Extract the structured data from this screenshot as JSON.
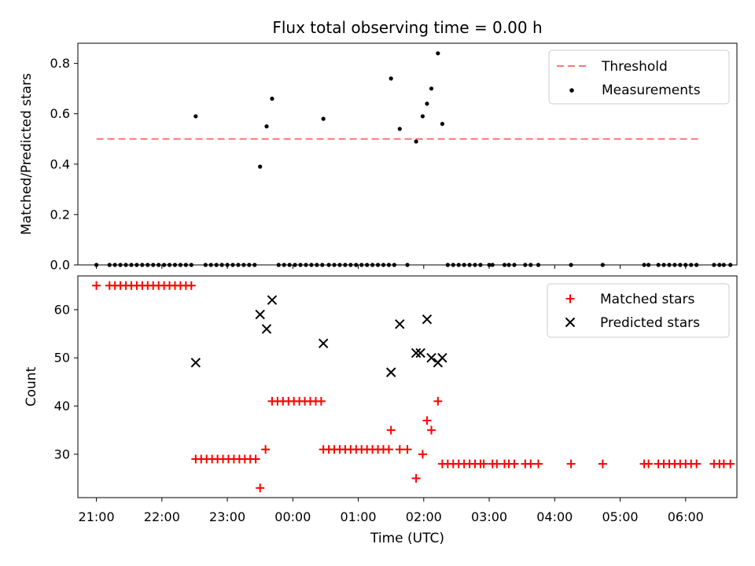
{
  "chart_data": [
    {
      "type": "scatter",
      "title": "Flux total observing time = 0.00 h",
      "xlabel": "",
      "ylabel": "Matched/Predicted stars",
      "xlim": [
        "20:43",
        "06:47"
      ],
      "ylim": [
        0,
        0.88
      ],
      "yticks": [
        "0.0",
        "0.2",
        "0.4",
        "0.6",
        "0.8"
      ],
      "legend_placement": "upper-right",
      "legend": [
        {
          "label": "Threshold",
          "marker": "dashed-line",
          "color": "#ff7777"
        },
        {
          "label": "Measurements",
          "marker": "dot",
          "color": "#000000"
        }
      ],
      "threshold": {
        "name": "Threshold",
        "value": 0.5,
        "x_start": "21:00",
        "x_end": "06:15",
        "color": "#ff7777"
      },
      "series": [
        {
          "name": "Measurements",
          "color": "#000000",
          "points": [
            [
              "21:00",
              0
            ],
            [
              "21:12",
              0
            ],
            [
              "21:17",
              0
            ],
            [
              "21:22",
              0
            ],
            [
              "21:27",
              0
            ],
            [
              "21:32",
              0
            ],
            [
              "21:37",
              0
            ],
            [
              "21:42",
              0
            ],
            [
              "21:47",
              0
            ],
            [
              "21:52",
              0
            ],
            [
              "21:57",
              0
            ],
            [
              "22:02",
              0
            ],
            [
              "22:07",
              0
            ],
            [
              "22:12",
              0
            ],
            [
              "22:17",
              0
            ],
            [
              "22:22",
              0
            ],
            [
              "22:27",
              0
            ],
            [
              "22:31",
              0.59
            ],
            [
              "22:40",
              0
            ],
            [
              "22:45",
              0
            ],
            [
              "22:50",
              0
            ],
            [
              "22:55",
              0
            ],
            [
              "23:00",
              0
            ],
            [
              "23:05",
              0
            ],
            [
              "23:10",
              0
            ],
            [
              "23:15",
              0
            ],
            [
              "23:20",
              0
            ],
            [
              "23:25",
              0
            ],
            [
              "23:30",
              0.39
            ],
            [
              "23:36",
              0.55
            ],
            [
              "23:41",
              0.66
            ],
            [
              "23:47",
              0
            ],
            [
              "23:52",
              0
            ],
            [
              "23:57",
              0
            ],
            [
              "00:02",
              0
            ],
            [
              "00:07",
              0
            ],
            [
              "00:12",
              0
            ],
            [
              "00:17",
              0
            ],
            [
              "00:22",
              0
            ],
            [
              "00:27",
              0
            ],
            [
              "00:28",
              0.58
            ],
            [
              "00:33",
              0
            ],
            [
              "00:38",
              0
            ],
            [
              "00:43",
              0
            ],
            [
              "00:48",
              0
            ],
            [
              "00:53",
              0
            ],
            [
              "00:58",
              0
            ],
            [
              "01:03",
              0
            ],
            [
              "01:08",
              0
            ],
            [
              "01:13",
              0
            ],
            [
              "01:18",
              0
            ],
            [
              "01:23",
              0
            ],
            [
              "01:28",
              0
            ],
            [
              "01:33",
              0
            ],
            [
              "01:30",
              0.74
            ],
            [
              "01:38",
              0.54
            ],
            [
              "01:45",
              0
            ],
            [
              "01:53",
              0.49
            ],
            [
              "01:59",
              0.59
            ],
            [
              "02:03",
              0.64
            ],
            [
              "02:07",
              0.7
            ],
            [
              "02:13",
              0.84
            ],
            [
              "02:17",
              0.56
            ],
            [
              "02:22",
              0
            ],
            [
              "02:27",
              0
            ],
            [
              "02:32",
              0
            ],
            [
              "02:37",
              0
            ],
            [
              "02:42",
              0
            ],
            [
              "02:47",
              0
            ],
            [
              "02:52",
              0
            ],
            [
              "03:00",
              0
            ],
            [
              "03:03",
              0
            ],
            [
              "03:14",
              0
            ],
            [
              "03:18",
              0
            ],
            [
              "03:23",
              0
            ],
            [
              "03:33",
              0
            ],
            [
              "03:38",
              0
            ],
            [
              "03:45",
              0
            ],
            [
              "04:15",
              0
            ],
            [
              "04:44",
              0
            ],
            [
              "05:22",
              0
            ],
            [
              "05:26",
              0
            ],
            [
              "05:35",
              0
            ],
            [
              "05:40",
              0
            ],
            [
              "05:45",
              0
            ],
            [
              "05:50",
              0
            ],
            [
              "05:55",
              0
            ],
            [
              "06:00",
              0
            ],
            [
              "06:05",
              0
            ],
            [
              "06:10",
              0
            ],
            [
              "06:26",
              0
            ],
            [
              "06:31",
              0
            ],
            [
              "06:35",
              0
            ],
            [
              "06:41",
              0
            ]
          ]
        }
      ]
    },
    {
      "type": "scatter",
      "title": "",
      "xlabel": "Time (UTC)",
      "ylabel": "Count",
      "xlim": [
        "20:43",
        "06:47"
      ],
      "ylim": [
        21,
        67
      ],
      "xticks": [
        "21:00",
        "22:00",
        "23:00",
        "00:00",
        "01:00",
        "02:00",
        "03:00",
        "04:00",
        "05:00",
        "06:00"
      ],
      "yticks": [
        "30",
        "40",
        "50",
        "60"
      ],
      "legend_placement": "upper-right",
      "legend": [
        {
          "label": "Matched stars",
          "marker": "plus",
          "color": "#ff0000"
        },
        {
          "label": "Predicted stars",
          "marker": "x",
          "color": "#000000"
        }
      ],
      "series": [
        {
          "name": "Matched stars",
          "color": "#ff0000",
          "points": [
            [
              "21:00",
              65
            ],
            [
              "21:12",
              65
            ],
            [
              "21:17",
              65
            ],
            [
              "21:22",
              65
            ],
            [
              "21:27",
              65
            ],
            [
              "21:32",
              65
            ],
            [
              "21:37",
              65
            ],
            [
              "21:42",
              65
            ],
            [
              "21:47",
              65
            ],
            [
              "21:52",
              65
            ],
            [
              "21:57",
              65
            ],
            [
              "22:02",
              65
            ],
            [
              "22:07",
              65
            ],
            [
              "22:12",
              65
            ],
            [
              "22:17",
              65
            ],
            [
              "22:22",
              65
            ],
            [
              "22:27",
              65
            ],
            [
              "22:31",
              29
            ],
            [
              "22:36",
              29
            ],
            [
              "22:41",
              29
            ],
            [
              "22:46",
              29
            ],
            [
              "22:51",
              29
            ],
            [
              "22:56",
              29
            ],
            [
              "23:01",
              29
            ],
            [
              "23:06",
              29
            ],
            [
              "23:11",
              29
            ],
            [
              "23:16",
              29
            ],
            [
              "23:21",
              29
            ],
            [
              "23:26",
              29
            ],
            [
              "23:30",
              23
            ],
            [
              "23:35",
              31
            ],
            [
              "23:41",
              41
            ],
            [
              "23:46",
              41
            ],
            [
              "23:51",
              41
            ],
            [
              "23:56",
              41
            ],
            [
              "00:01",
              41
            ],
            [
              "00:06",
              41
            ],
            [
              "00:11",
              41
            ],
            [
              "00:16",
              41
            ],
            [
              "00:21",
              41
            ],
            [
              "00:26",
              41
            ],
            [
              "00:28",
              31
            ],
            [
              "00:33",
              31
            ],
            [
              "00:38",
              31
            ],
            [
              "00:43",
              31
            ],
            [
              "00:48",
              31
            ],
            [
              "00:53",
              31
            ],
            [
              "00:58",
              31
            ],
            [
              "01:03",
              31
            ],
            [
              "01:08",
              31
            ],
            [
              "01:13",
              31
            ],
            [
              "01:18",
              31
            ],
            [
              "01:23",
              31
            ],
            [
              "01:28",
              31
            ],
            [
              "01:30",
              35
            ],
            [
              "01:38",
              31
            ],
            [
              "01:45",
              31
            ],
            [
              "01:53",
              25
            ],
            [
              "01:59",
              30
            ],
            [
              "02:03",
              37
            ],
            [
              "02:07",
              35
            ],
            [
              "02:13",
              41
            ],
            [
              "02:17",
              28
            ],
            [
              "02:22",
              28
            ],
            [
              "02:27",
              28
            ],
            [
              "02:32",
              28
            ],
            [
              "02:37",
              28
            ],
            [
              "02:42",
              28
            ],
            [
              "02:47",
              28
            ],
            [
              "02:52",
              28
            ],
            [
              "02:55",
              28
            ],
            [
              "03:03",
              28
            ],
            [
              "03:07",
              28
            ],
            [
              "03:14",
              28
            ],
            [
              "03:18",
              28
            ],
            [
              "03:23",
              28
            ],
            [
              "03:33",
              28
            ],
            [
              "03:38",
              28
            ],
            [
              "03:45",
              28
            ],
            [
              "04:15",
              28
            ],
            [
              "04:44",
              28
            ],
            [
              "05:22",
              28
            ],
            [
              "05:26",
              28
            ],
            [
              "05:35",
              28
            ],
            [
              "05:40",
              28
            ],
            [
              "05:45",
              28
            ],
            [
              "05:50",
              28
            ],
            [
              "05:55",
              28
            ],
            [
              "06:00",
              28
            ],
            [
              "06:05",
              28
            ],
            [
              "06:10",
              28
            ],
            [
              "06:26",
              28
            ],
            [
              "06:31",
              28
            ],
            [
              "06:35",
              28
            ],
            [
              "06:41",
              28
            ]
          ]
        },
        {
          "name": "Predicted stars",
          "color": "#000000",
          "points": [
            [
              "22:31",
              49
            ],
            [
              "23:30",
              59
            ],
            [
              "23:36",
              56
            ],
            [
              "23:41",
              62
            ],
            [
              "00:28",
              53
            ],
            [
              "01:30",
              47
            ],
            [
              "01:38",
              57
            ],
            [
              "01:53",
              51
            ],
            [
              "01:57",
              51
            ],
            [
              "02:03",
              58
            ],
            [
              "02:07",
              50
            ],
            [
              "02:13",
              49
            ],
            [
              "02:17",
              50
            ]
          ]
        }
      ]
    }
  ]
}
